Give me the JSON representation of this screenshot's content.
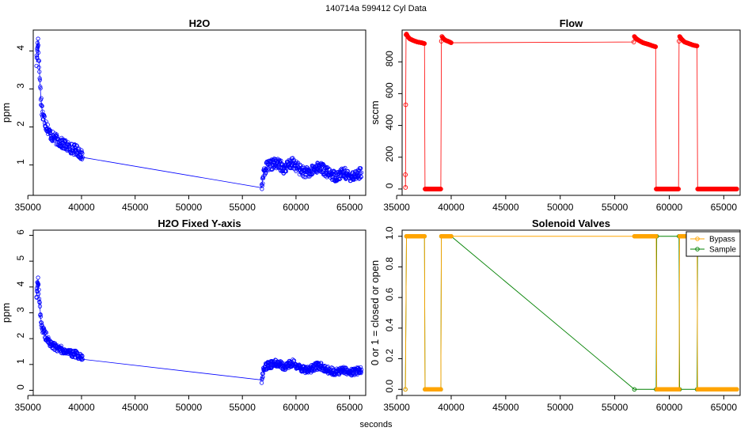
{
  "figure": {
    "title": "140714a   599412   Cyl Data",
    "xlabel": "seconds"
  },
  "chart_data": [
    {
      "id": "h2o",
      "type": "scatter",
      "title": "H2O",
      "ylabel": "ppm",
      "xlabel": "",
      "xlim": [
        35500,
        66500
      ],
      "ylim": [
        0.2,
        4.55
      ],
      "xticks": [
        35000,
        40000,
        45000,
        50000,
        55000,
        60000,
        65000
      ],
      "yticks": [
        1,
        2,
        3,
        4
      ],
      "colors": {
        "series": "#0000ff"
      },
      "series": [
        {
          "x": [
            35800,
            35850,
            35900,
            35950,
            36000,
            36100,
            36200,
            36300,
            36400,
            36600,
            36800,
            37000,
            37250,
            37500,
            37750,
            38000,
            38300,
            38600,
            38900,
            39200,
            39500,
            39700,
            39900,
            40100,
            56800,
            57000,
            57300,
            57700,
            58100,
            58500,
            58900,
            59300,
            59700,
            60100,
            60500,
            60900,
            61300,
            61700,
            62100,
            62500,
            62900,
            63300,
            63700,
            64100,
            64500,
            64900,
            65300,
            65700,
            66100
          ],
          "y": [
            3.7,
            3.9,
            4.15,
            4.3,
            3.85,
            3.35,
            2.8,
            2.5,
            2.3,
            2.15,
            2.0,
            1.85,
            1.75,
            1.7,
            1.65,
            1.6,
            1.55,
            1.5,
            1.45,
            1.42,
            1.4,
            1.35,
            1.3,
            1.2,
            0.4,
            0.85,
            0.95,
            1.0,
            1.05,
            1.0,
            0.9,
            1.0,
            1.05,
            0.95,
            0.85,
            0.8,
            0.8,
            0.9,
            0.95,
            0.9,
            0.8,
            0.75,
            0.7,
            0.75,
            0.8,
            0.7,
            0.72,
            0.75,
            0.8
          ]
        }
      ]
    },
    {
      "id": "flow",
      "type": "line",
      "title": "Flow",
      "ylabel": "sccm",
      "xlabel": "",
      "xlim": [
        35500,
        66500
      ],
      "ylim": [
        -40,
        1000
      ],
      "xticks": [
        35000,
        40000,
        45000,
        50000,
        55000,
        60000,
        65000
      ],
      "yticks": [
        0,
        200,
        400,
        600,
        800
      ],
      "colors": {
        "series": "#ff0000"
      },
      "series": [
        {
          "x": [
            35800,
            35810,
            35830,
            35860,
            35900,
            36000,
            36200,
            36500,
            36900,
            37300,
            37550,
            37600,
            37700,
            38000,
            38500,
            38900,
            39050,
            39100,
            39150,
            39200,
            39300,
            39500,
            39700,
            40000,
            56750,
            56800,
            56900,
            57200,
            57600,
            58100,
            58500,
            58750,
            58800,
            58900,
            59300,
            59800,
            60400,
            60850,
            60900,
            60950,
            61100,
            61400,
            61800,
            62200,
            62550,
            62600,
            62700,
            63300,
            64000,
            64700,
            65400,
            66200
          ],
          "y": [
            90,
            10,
            530,
            970,
            975,
            960,
            945,
            935,
            925,
            920,
            915,
            0,
            0,
            0,
            0,
            0,
            0,
            930,
            960,
            955,
            945,
            935,
            930,
            920,
            925,
            960,
            950,
            935,
            920,
            910,
            900,
            895,
            0,
            0,
            0,
            0,
            0,
            0,
            930,
            960,
            945,
            925,
            915,
            905,
            900,
            0,
            0,
            0,
            0,
            0,
            0,
            0
          ]
        }
      ]
    },
    {
      "id": "h2o-fixed",
      "type": "scatter",
      "title": "H2O Fixed Y-axis",
      "ylabel": "ppm",
      "xlabel": "",
      "xlim": [
        35500,
        66500
      ],
      "ylim": [
        -0.2,
        6.2
      ],
      "xticks": [
        35000,
        40000,
        45000,
        50000,
        55000,
        60000,
        65000
      ],
      "yticks": [
        0,
        1,
        2,
        3,
        4,
        5,
        6
      ],
      "colors": {
        "series": "#0000ff"
      },
      "series": [
        {
          "x": [
            35800,
            35850,
            35900,
            35950,
            36000,
            36100,
            36200,
            36300,
            36400,
            36600,
            36800,
            37000,
            37250,
            37500,
            37750,
            38000,
            38300,
            38600,
            38900,
            39200,
            39500,
            39700,
            39900,
            40100,
            56800,
            57000,
            57300,
            57700,
            58100,
            58500,
            58900,
            59300,
            59700,
            60100,
            60500,
            60900,
            61300,
            61700,
            62100,
            62500,
            62900,
            63300,
            63700,
            64100,
            64500,
            64900,
            65300,
            65700,
            66100
          ],
          "y": [
            3.7,
            3.9,
            4.15,
            4.3,
            3.85,
            3.35,
            2.8,
            2.5,
            2.3,
            2.15,
            2.0,
            1.85,
            1.75,
            1.7,
            1.65,
            1.6,
            1.55,
            1.5,
            1.45,
            1.42,
            1.4,
            1.35,
            1.3,
            1.2,
            0.4,
            0.85,
            0.95,
            1.0,
            1.05,
            1.0,
            0.9,
            1.0,
            1.05,
            0.95,
            0.85,
            0.8,
            0.8,
            0.9,
            0.95,
            0.9,
            0.8,
            0.75,
            0.7,
            0.75,
            0.8,
            0.7,
            0.72,
            0.75,
            0.8
          ]
        }
      ]
    },
    {
      "id": "valves",
      "type": "line",
      "title": "Solenoid Valves",
      "ylabel": "0 or 1 = closed or open",
      "xlabel": "",
      "xlim": [
        35500,
        66500
      ],
      "ylim": [
        -0.04,
        1.04
      ],
      "xticks": [
        35000,
        40000,
        45000,
        50000,
        55000,
        60000,
        65000
      ],
      "yticks": [
        0.0,
        0.2,
        0.4,
        0.6,
        0.8,
        1.0
      ],
      "legend": {
        "position": "top-right",
        "entries": [
          "Bypass",
          "Sample"
        ]
      },
      "series": [
        {
          "name": "Bypass",
          "color": "#ffa500",
          "x": [
            35800,
            35900,
            37550,
            37600,
            39050,
            39100,
            40000,
            56800,
            58800,
            58850,
            60900,
            60950,
            62550,
            62600,
            66200
          ],
          "y": [
            0,
            1,
            1,
            0,
            0,
            1,
            1,
            1,
            1,
            0,
            0,
            1,
            1,
            0,
            0
          ]
        },
        {
          "name": "Sample",
          "color": "#008000",
          "x": [
            35800,
            35900,
            37550,
            37600,
            39050,
            39100,
            40000,
            56800,
            58800,
            58850,
            60900,
            60950,
            62550,
            62600
          ],
          "y": [
            0,
            1,
            1,
            0,
            0,
            1,
            1,
            0,
            0,
            1,
            1,
            0,
            0,
            1
          ]
        }
      ]
    }
  ]
}
